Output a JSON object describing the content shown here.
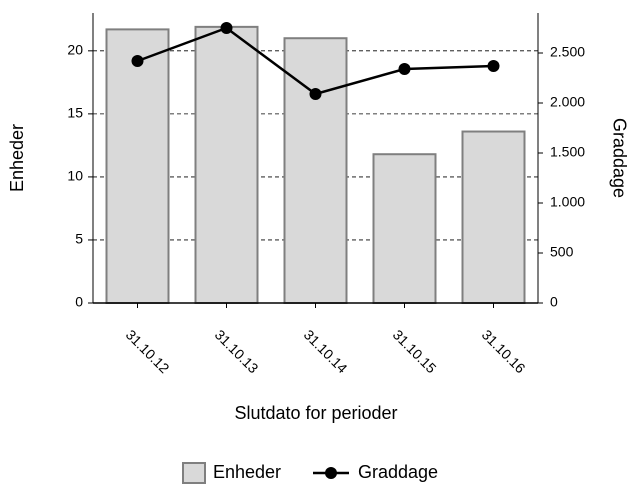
{
  "chart_data": {
    "type": "bar-line",
    "x_label": "Slutdato for perioder",
    "y_label": "Enheder",
    "y2_label": "Graddage",
    "categories": [
      "31.10.12",
      "31.10.13",
      "31.10.14",
      "31.10.15",
      "31.10.16"
    ],
    "series": [
      {
        "name": "Enheder",
        "type": "bar",
        "color": "#d9d9d9",
        "values": [
          21.7,
          21.9,
          21.0,
          11.8,
          13.6
        ]
      },
      {
        "name": "Graddage",
        "type": "line",
        "axis": "y2",
        "color": "#000000",
        "values": [
          2420,
          2750,
          2090,
          2340,
          2370
        ]
      }
    ],
    "ylim": [
      0,
      23
    ],
    "yticks": [
      0,
      5,
      10,
      15,
      20
    ],
    "y2lim": [
      0,
      2900
    ],
    "y2ticks": [
      0,
      500,
      {
        "value": 1000,
        "label": "1.000"
      },
      {
        "value": 1500,
        "label": "1.500"
      },
      {
        "value": 2000,
        "label": "2.000"
      },
      {
        "value": 2500,
        "label": "2.500"
      }
    ],
    "grid": true,
    "legend": "bottom"
  }
}
